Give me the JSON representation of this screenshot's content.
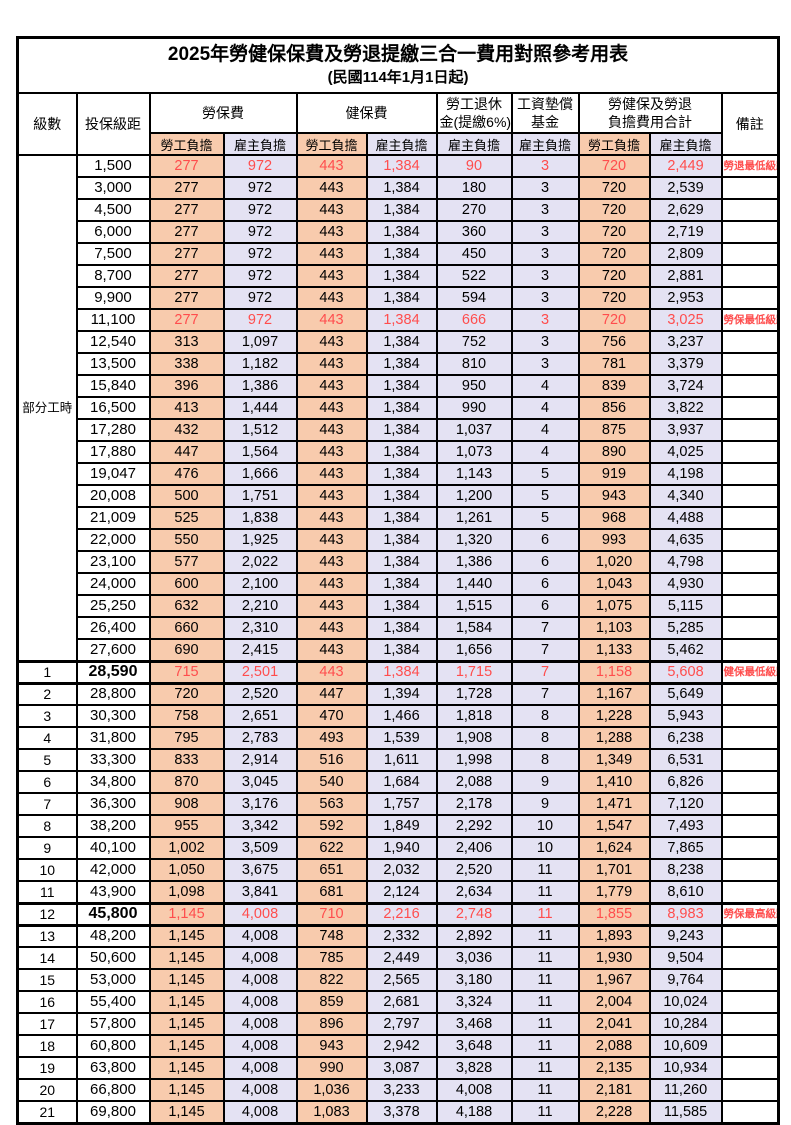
{
  "title": "2025年勞健保保費及勞退提繳三合一費用對照參考用表",
  "subtitle": "(民國114年1月1日起)",
  "header": {
    "level": "級數",
    "bracket": "投保級距",
    "labor": "勞保費",
    "health": "健保費",
    "pension_line1": "勞工退休",
    "pension_line2": "金(提繳6%)",
    "wage_fund_line1": "工資墊償",
    "wage_fund_line2": "基金",
    "total_line1": "勞健保及勞退",
    "total_line2": "負擔費用合計",
    "remark": "備註",
    "employee": "勞工負擔",
    "employer": "雇主負擔"
  },
  "part_time_label": "部分工時",
  "colors": {
    "employee_bg": "#F8CBAD",
    "employer_bg": "#E4E2F3",
    "highlight_text": "#FF4D4D",
    "remark_text": "#FF3B3B",
    "border": "#000000"
  },
  "rows": [
    {
      "level": "",
      "bracket": "1,500",
      "values": [
        "277",
        "972",
        "443",
        "1,384",
        "90",
        "3",
        "720",
        "2,449"
      ],
      "remark": "勞退最低級距",
      "highlight": true,
      "emphasis": false
    },
    {
      "level": "",
      "bracket": "3,000",
      "values": [
        "277",
        "972",
        "443",
        "1,384",
        "180",
        "3",
        "720",
        "2,539"
      ],
      "remark": "",
      "highlight": false,
      "emphasis": false
    },
    {
      "level": "",
      "bracket": "4,500",
      "values": [
        "277",
        "972",
        "443",
        "1,384",
        "270",
        "3",
        "720",
        "2,629"
      ],
      "remark": "",
      "highlight": false,
      "emphasis": false
    },
    {
      "level": "",
      "bracket": "6,000",
      "values": [
        "277",
        "972",
        "443",
        "1,384",
        "360",
        "3",
        "720",
        "2,719"
      ],
      "remark": "",
      "highlight": false,
      "emphasis": false
    },
    {
      "level": "",
      "bracket": "7,500",
      "values": [
        "277",
        "972",
        "443",
        "1,384",
        "450",
        "3",
        "720",
        "2,809"
      ],
      "remark": "",
      "highlight": false,
      "emphasis": false
    },
    {
      "level": "",
      "bracket": "8,700",
      "values": [
        "277",
        "972",
        "443",
        "1,384",
        "522",
        "3",
        "720",
        "2,881"
      ],
      "remark": "",
      "highlight": false,
      "emphasis": false
    },
    {
      "level": "",
      "bracket": "9,900",
      "values": [
        "277",
        "972",
        "443",
        "1,384",
        "594",
        "3",
        "720",
        "2,953"
      ],
      "remark": "",
      "highlight": false,
      "emphasis": false
    },
    {
      "level": "",
      "bracket": "11,100",
      "values": [
        "277",
        "972",
        "443",
        "1,384",
        "666",
        "3",
        "720",
        "3,025"
      ],
      "remark": "勞保最低級距",
      "highlight": true,
      "emphasis": false
    },
    {
      "level": "",
      "bracket": "12,540",
      "values": [
        "313",
        "1,097",
        "443",
        "1,384",
        "752",
        "3",
        "756",
        "3,237"
      ],
      "remark": "",
      "highlight": false,
      "emphasis": false
    },
    {
      "level": "",
      "bracket": "13,500",
      "values": [
        "338",
        "1,182",
        "443",
        "1,384",
        "810",
        "3",
        "781",
        "3,379"
      ],
      "remark": "",
      "highlight": false,
      "emphasis": false
    },
    {
      "level": "",
      "bracket": "15,840",
      "values": [
        "396",
        "1,386",
        "443",
        "1,384",
        "950",
        "4",
        "839",
        "3,724"
      ],
      "remark": "",
      "highlight": false,
      "emphasis": false
    },
    {
      "level": "",
      "bracket": "16,500",
      "values": [
        "413",
        "1,444",
        "443",
        "1,384",
        "990",
        "4",
        "856",
        "3,822"
      ],
      "remark": "",
      "highlight": false,
      "emphasis": false
    },
    {
      "level": "",
      "bracket": "17,280",
      "values": [
        "432",
        "1,512",
        "443",
        "1,384",
        "1,037",
        "4",
        "875",
        "3,937"
      ],
      "remark": "",
      "highlight": false,
      "emphasis": false
    },
    {
      "level": "",
      "bracket": "17,880",
      "values": [
        "447",
        "1,564",
        "443",
        "1,384",
        "1,073",
        "4",
        "890",
        "4,025"
      ],
      "remark": "",
      "highlight": false,
      "emphasis": false
    },
    {
      "level": "",
      "bracket": "19,047",
      "values": [
        "476",
        "1,666",
        "443",
        "1,384",
        "1,143",
        "5",
        "919",
        "4,198"
      ],
      "remark": "",
      "highlight": false,
      "emphasis": false
    },
    {
      "level": "",
      "bracket": "20,008",
      "values": [
        "500",
        "1,751",
        "443",
        "1,384",
        "1,200",
        "5",
        "943",
        "4,340"
      ],
      "remark": "",
      "highlight": false,
      "emphasis": false
    },
    {
      "level": "",
      "bracket": "21,009",
      "values": [
        "525",
        "1,838",
        "443",
        "1,384",
        "1,261",
        "5",
        "968",
        "4,488"
      ],
      "remark": "",
      "highlight": false,
      "emphasis": false
    },
    {
      "level": "",
      "bracket": "22,000",
      "values": [
        "550",
        "1,925",
        "443",
        "1,384",
        "1,320",
        "6",
        "993",
        "4,635"
      ],
      "remark": "",
      "highlight": false,
      "emphasis": false
    },
    {
      "level": "",
      "bracket": "23,100",
      "values": [
        "577",
        "2,022",
        "443",
        "1,384",
        "1,386",
        "6",
        "1,020",
        "4,798"
      ],
      "remark": "",
      "highlight": false,
      "emphasis": false
    },
    {
      "level": "",
      "bracket": "24,000",
      "values": [
        "600",
        "2,100",
        "443",
        "1,384",
        "1,440",
        "6",
        "1,043",
        "4,930"
      ],
      "remark": "",
      "highlight": false,
      "emphasis": false
    },
    {
      "level": "",
      "bracket": "25,250",
      "values": [
        "632",
        "2,210",
        "443",
        "1,384",
        "1,515",
        "6",
        "1,075",
        "5,115"
      ],
      "remark": "",
      "highlight": false,
      "emphasis": false
    },
    {
      "level": "",
      "bracket": "26,400",
      "values": [
        "660",
        "2,310",
        "443",
        "1,384",
        "1,584",
        "7",
        "1,103",
        "5,285"
      ],
      "remark": "",
      "highlight": false,
      "emphasis": false
    },
    {
      "level": "",
      "bracket": "27,600",
      "values": [
        "690",
        "2,415",
        "443",
        "1,384",
        "1,656",
        "7",
        "1,133",
        "5,462"
      ],
      "remark": "",
      "highlight": false,
      "emphasis": false
    },
    {
      "level": "1",
      "bracket": "28,590",
      "values": [
        "715",
        "2,501",
        "443",
        "1,384",
        "1,715",
        "7",
        "1,158",
        "5,608"
      ],
      "remark": "健保最低級距",
      "highlight": true,
      "emphasis": true
    },
    {
      "level": "2",
      "bracket": "28,800",
      "values": [
        "720",
        "2,520",
        "447",
        "1,394",
        "1,728",
        "7",
        "1,167",
        "5,649"
      ],
      "remark": "",
      "highlight": false,
      "emphasis": false
    },
    {
      "level": "3",
      "bracket": "30,300",
      "values": [
        "758",
        "2,651",
        "470",
        "1,466",
        "1,818",
        "8",
        "1,228",
        "5,943"
      ],
      "remark": "",
      "highlight": false,
      "emphasis": false
    },
    {
      "level": "4",
      "bracket": "31,800",
      "values": [
        "795",
        "2,783",
        "493",
        "1,539",
        "1,908",
        "8",
        "1,288",
        "6,238"
      ],
      "remark": "",
      "highlight": false,
      "emphasis": false
    },
    {
      "level": "5",
      "bracket": "33,300",
      "values": [
        "833",
        "2,914",
        "516",
        "1,611",
        "1,998",
        "8",
        "1,349",
        "6,531"
      ],
      "remark": "",
      "highlight": false,
      "emphasis": false
    },
    {
      "level": "6",
      "bracket": "34,800",
      "values": [
        "870",
        "3,045",
        "540",
        "1,684",
        "2,088",
        "9",
        "1,410",
        "6,826"
      ],
      "remark": "",
      "highlight": false,
      "emphasis": false
    },
    {
      "level": "7",
      "bracket": "36,300",
      "values": [
        "908",
        "3,176",
        "563",
        "1,757",
        "2,178",
        "9",
        "1,471",
        "7,120"
      ],
      "remark": "",
      "highlight": false,
      "emphasis": false
    },
    {
      "level": "8",
      "bracket": "38,200",
      "values": [
        "955",
        "3,342",
        "592",
        "1,849",
        "2,292",
        "10",
        "1,547",
        "7,493"
      ],
      "remark": "",
      "highlight": false,
      "emphasis": false
    },
    {
      "level": "9",
      "bracket": "40,100",
      "values": [
        "1,002",
        "3,509",
        "622",
        "1,940",
        "2,406",
        "10",
        "1,624",
        "7,865"
      ],
      "remark": "",
      "highlight": false,
      "emphasis": false
    },
    {
      "level": "10",
      "bracket": "42,000",
      "values": [
        "1,050",
        "3,675",
        "651",
        "2,032",
        "2,520",
        "11",
        "1,701",
        "8,238"
      ],
      "remark": "",
      "highlight": false,
      "emphasis": false
    },
    {
      "level": "11",
      "bracket": "43,900",
      "values": [
        "1,098",
        "3,841",
        "681",
        "2,124",
        "2,634",
        "11",
        "1,779",
        "8,610"
      ],
      "remark": "",
      "highlight": false,
      "emphasis": false
    },
    {
      "level": "12",
      "bracket": "45,800",
      "values": [
        "1,145",
        "4,008",
        "710",
        "2,216",
        "2,748",
        "11",
        "1,855",
        "8,983"
      ],
      "remark": "勞保最高級距",
      "highlight": true,
      "emphasis": true
    },
    {
      "level": "13",
      "bracket": "48,200",
      "values": [
        "1,145",
        "4,008",
        "748",
        "2,332",
        "2,892",
        "11",
        "1,893",
        "9,243"
      ],
      "remark": "",
      "highlight": false,
      "emphasis": false
    },
    {
      "level": "14",
      "bracket": "50,600",
      "values": [
        "1,145",
        "4,008",
        "785",
        "2,449",
        "3,036",
        "11",
        "1,930",
        "9,504"
      ],
      "remark": "",
      "highlight": false,
      "emphasis": false
    },
    {
      "level": "15",
      "bracket": "53,000",
      "values": [
        "1,145",
        "4,008",
        "822",
        "2,565",
        "3,180",
        "11",
        "1,967",
        "9,764"
      ],
      "remark": "",
      "highlight": false,
      "emphasis": false
    },
    {
      "level": "16",
      "bracket": "55,400",
      "values": [
        "1,145",
        "4,008",
        "859",
        "2,681",
        "3,324",
        "11",
        "2,004",
        "10,024"
      ],
      "remark": "",
      "highlight": false,
      "emphasis": false
    },
    {
      "level": "17",
      "bracket": "57,800",
      "values": [
        "1,145",
        "4,008",
        "896",
        "2,797",
        "3,468",
        "11",
        "2,041",
        "10,284"
      ],
      "remark": "",
      "highlight": false,
      "emphasis": false
    },
    {
      "level": "18",
      "bracket": "60,800",
      "values": [
        "1,145",
        "4,008",
        "943",
        "2,942",
        "3,648",
        "11",
        "2,088",
        "10,609"
      ],
      "remark": "",
      "highlight": false,
      "emphasis": false
    },
    {
      "level": "19",
      "bracket": "63,800",
      "values": [
        "1,145",
        "4,008",
        "990",
        "3,087",
        "3,828",
        "11",
        "2,135",
        "10,934"
      ],
      "remark": "",
      "highlight": false,
      "emphasis": false
    },
    {
      "level": "20",
      "bracket": "66,800",
      "values": [
        "1,145",
        "4,008",
        "1,036",
        "3,233",
        "4,008",
        "11",
        "2,181",
        "11,260"
      ],
      "remark": "",
      "highlight": false,
      "emphasis": false
    },
    {
      "level": "21",
      "bracket": "69,800",
      "values": [
        "1,145",
        "4,008",
        "1,083",
        "3,378",
        "4,188",
        "11",
        "2,228",
        "11,585"
      ],
      "remark": "",
      "highlight": false,
      "emphasis": false
    }
  ]
}
